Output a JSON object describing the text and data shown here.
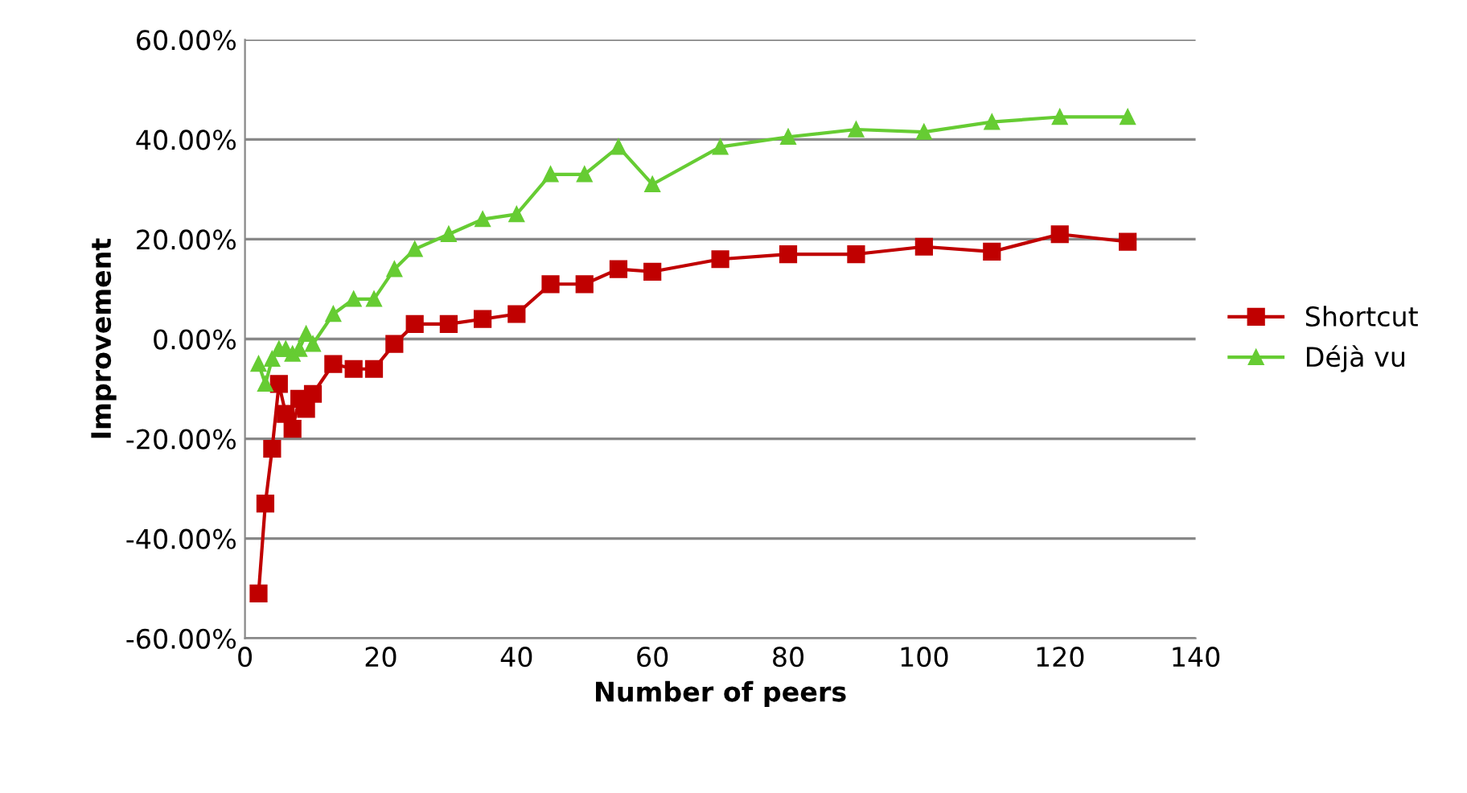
{
  "chart_data": {
    "type": "line",
    "xlabel": "Number of peers",
    "ylabel": "Improvement",
    "x": [
      2,
      3,
      4,
      5,
      6,
      7,
      8,
      9,
      10,
      13,
      16,
      19,
      22,
      25,
      30,
      35,
      40,
      45,
      50,
      55,
      60,
      70,
      80,
      90,
      100,
      110,
      120,
      130
    ],
    "series": [
      {
        "name": "Shortcut",
        "color": "#c00000",
        "marker": "square",
        "values": [
          -51,
          -33,
          -22,
          -9,
          -15,
          -18,
          -12,
          -14,
          -11,
          -5,
          -6,
          -6,
          -1,
          3,
          3,
          4,
          5,
          11,
          11,
          14,
          13.5,
          16,
          17,
          17,
          18.5,
          17.5,
          21,
          19.5
        ]
      },
      {
        "name": "Déjà vu",
        "color": "#66cc33",
        "marker": "triangle",
        "values": [
          -5,
          -9,
          -4,
          -2,
          -2,
          -3,
          -2,
          1,
          -1,
          5,
          8,
          8,
          14,
          18,
          21,
          24,
          25,
          33,
          33,
          38.5,
          31,
          38.5,
          40.5,
          42,
          41.5,
          43.5,
          44.5,
          44.5
        ]
      }
    ],
    "xlim": [
      0,
      140
    ],
    "xticks": [
      0,
      20,
      40,
      60,
      80,
      100,
      120,
      140
    ],
    "ylim": [
      -60,
      60
    ],
    "yticks": [
      {
        "value": -60,
        "label": "-60.00%"
      },
      {
        "value": -40,
        "label": "-40.00%"
      },
      {
        "value": -20,
        "label": "-20.00%"
      },
      {
        "value": 0,
        "label": "0.00%"
      },
      {
        "value": 20,
        "label": "20.00%"
      },
      {
        "value": 40,
        "label": "40.00%"
      },
      {
        "value": 60,
        "label": "60.00%"
      }
    ],
    "grid": "y",
    "legend": "right",
    "line_style": "solid"
  }
}
